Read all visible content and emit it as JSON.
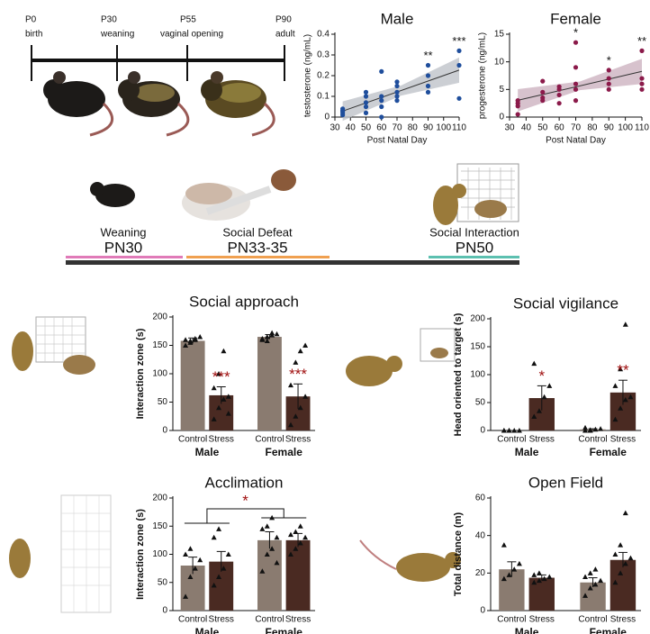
{
  "timeline": {
    "milestones": [
      {
        "day": "P0",
        "label": "birth"
      },
      {
        "day": "P30",
        "label": "weaning"
      },
      {
        "day": "P55",
        "label": "vaginal opening"
      },
      {
        "day": "P90",
        "label": "adult"
      }
    ]
  },
  "protocol": {
    "stages": [
      {
        "label": "Weaning",
        "day": "PN30"
      },
      {
        "label": "Social Defeat",
        "day": "PN33-35"
      },
      {
        "label": "Social Interaction",
        "day": "PN50"
      }
    ]
  },
  "chart_data": [
    {
      "type": "scatter",
      "title": "Male",
      "x_label": "Post Natal Day",
      "y_label": "testosterone (ng/mL)",
      "color": "#1f4e9c",
      "band_color": "#bfc3c9",
      "x": [
        35,
        35,
        35,
        35,
        35,
        50,
        50,
        50,
        50,
        50,
        60,
        60,
        60,
        60,
        60,
        70,
        70,
        70,
        70,
        70,
        90,
        90,
        90,
        90,
        110,
        110,
        110
      ],
      "values": [
        0.01,
        0.02,
        0.03,
        0.04,
        0.03,
        0.02,
        0.05,
        0.1,
        0.12,
        0.07,
        0.0,
        0.05,
        0.08,
        0.22,
        0.1,
        0.08,
        0.1,
        0.12,
        0.15,
        0.17,
        0.15,
        0.2,
        0.25,
        0.12,
        0.09,
        0.25,
        0.32
      ],
      "xlim": [
        30,
        110
      ],
      "xticks": [
        30,
        40,
        50,
        60,
        70,
        80,
        90,
        100,
        110
      ],
      "ylim": [
        0,
        0.4
      ],
      "yticks": [
        0,
        0.1,
        0.2,
        0.3,
        0.4
      ],
      "annotations": [
        {
          "x": 90,
          "text": "**"
        },
        {
          "x": 110,
          "text": "***"
        }
      ]
    },
    {
      "type": "scatter",
      "title": "Female",
      "x_label": "Post Natal Day",
      "y_label": "progesterone (ng/mL)",
      "color": "#8b1a4a",
      "band_color": "#cdb3c0",
      "x": [
        35,
        35,
        35,
        35,
        50,
        50,
        50,
        50,
        60,
        60,
        60,
        60,
        70,
        70,
        70,
        70,
        70,
        90,
        90,
        90,
        90,
        110,
        110,
        110,
        110
      ],
      "values": [
        0.5,
        2,
        2.5,
        3,
        3,
        3.5,
        4.5,
        6.5,
        2.5,
        4,
        5,
        5.5,
        3,
        5,
        6,
        9,
        13.5,
        5,
        6,
        7,
        8.5,
        5,
        6,
        7,
        12
      ],
      "xlim": [
        30,
        110
      ],
      "xticks": [
        30,
        40,
        50,
        60,
        70,
        80,
        90,
        100,
        110
      ],
      "ylim": [
        0,
        15
      ],
      "yticks": [
        0,
        5,
        10,
        15
      ],
      "annotations": [
        {
          "x": 70,
          "text": "*"
        },
        {
          "x": 90,
          "text": "*"
        },
        {
          "x": 110,
          "text": "**"
        }
      ]
    },
    {
      "type": "bar",
      "title": "Social approach",
      "y_label": "Interaction zone (s)",
      "categories": [
        "Control",
        "Stress",
        "Control",
        "Stress"
      ],
      "groups": [
        "Male",
        "Female"
      ],
      "colors": [
        "#8a7b70",
        "#4a2a22",
        "#8a7b70",
        "#4a2a22"
      ],
      "values": [
        158,
        62,
        165,
        60
      ],
      "errors": [
        5,
        15,
        4,
        22
      ],
      "points": [
        [
          150,
          155,
          160,
          165,
          160,
          158,
          162
        ],
        [
          20,
          40,
          55,
          60,
          75,
          100,
          140,
          30
        ],
        [
          160,
          165,
          168,
          170,
          162,
          158,
          172
        ],
        [
          10,
          25,
          40,
          60,
          80,
          120,
          140,
          150
        ]
      ],
      "significance": [
        null,
        "***",
        null,
        "***"
      ],
      "ylim": [
        0,
        200
      ],
      "yticks": [
        0,
        50,
        100,
        150,
        200
      ]
    },
    {
      "type": "bar",
      "title": "Social vigilance",
      "y_label": "Head oriented to target (s)",
      "categories": [
        "Control",
        "Stress",
        "Control",
        "Stress"
      ],
      "groups": [
        "Male",
        "Female"
      ],
      "colors": [
        "#8a7b70",
        "#4a2a22",
        "#8a7b70",
        "#4a2a22"
      ],
      "values": [
        0,
        58,
        2,
        68
      ],
      "errors": [
        0,
        22,
        1,
        22
      ],
      "points": [
        [
          0,
          0,
          0,
          0,
          0,
          0
        ],
        [
          25,
          35,
          60,
          80,
          120
        ],
        [
          0,
          1,
          2,
          3,
          5,
          0
        ],
        [
          20,
          40,
          55,
          60,
          80,
          110,
          190
        ]
      ],
      "significance": [
        null,
        "*",
        null,
        "**"
      ],
      "ylim": [
        0,
        200
      ],
      "yticks": [
        0,
        50,
        100,
        150,
        200
      ]
    },
    {
      "type": "bar",
      "title": "Acclimation",
      "y_label": "Interaction zone (s)",
      "categories": [
        "Control",
        "Stress",
        "Control",
        "Stress"
      ],
      "groups": [
        "Male",
        "Female"
      ],
      "colors": [
        "#8a7b70",
        "#4a2a22",
        "#8a7b70",
        "#4a2a22"
      ],
      "values": [
        80,
        87,
        125,
        125
      ],
      "errors": [
        15,
        18,
        15,
        12
      ],
      "points": [
        [
          25,
          60,
          75,
          90,
          100,
          110
        ],
        [
          45,
          60,
          75,
          100,
          130,
          145
        ],
        [
          70,
          100,
          110,
          130,
          145,
          150,
          165,
          85
        ],
        [
          100,
          110,
          120,
          130,
          135,
          140,
          150
        ]
      ],
      "group_significance": "*",
      "ylim": [
        0,
        200
      ],
      "yticks": [
        0,
        50,
        100,
        150,
        200
      ]
    },
    {
      "type": "bar",
      "title": "Open Field",
      "y_label": "Total distance (m)",
      "categories": [
        "Control",
        "Stress",
        "Control",
        "Stress"
      ],
      "groups": [
        "Male",
        "Female"
      ],
      "colors": [
        "#8a7b70",
        "#4a2a22",
        "#8a7b70",
        "#4a2a22"
      ],
      "values": [
        22,
        17.5,
        15,
        27
      ],
      "errors": [
        4,
        1.5,
        2.5,
        4
      ],
      "points": [
        [
          17,
          19,
          22,
          25,
          35
        ],
        [
          15,
          16,
          17,
          18,
          19,
          20
        ],
        [
          8,
          12,
          14,
          16,
          18,
          20,
          22
        ],
        [
          15,
          20,
          25,
          28,
          30,
          35,
          52
        ]
      ],
      "ylim": [
        0,
        60
      ],
      "yticks": [
        0,
        20,
        40,
        60
      ]
    }
  ]
}
